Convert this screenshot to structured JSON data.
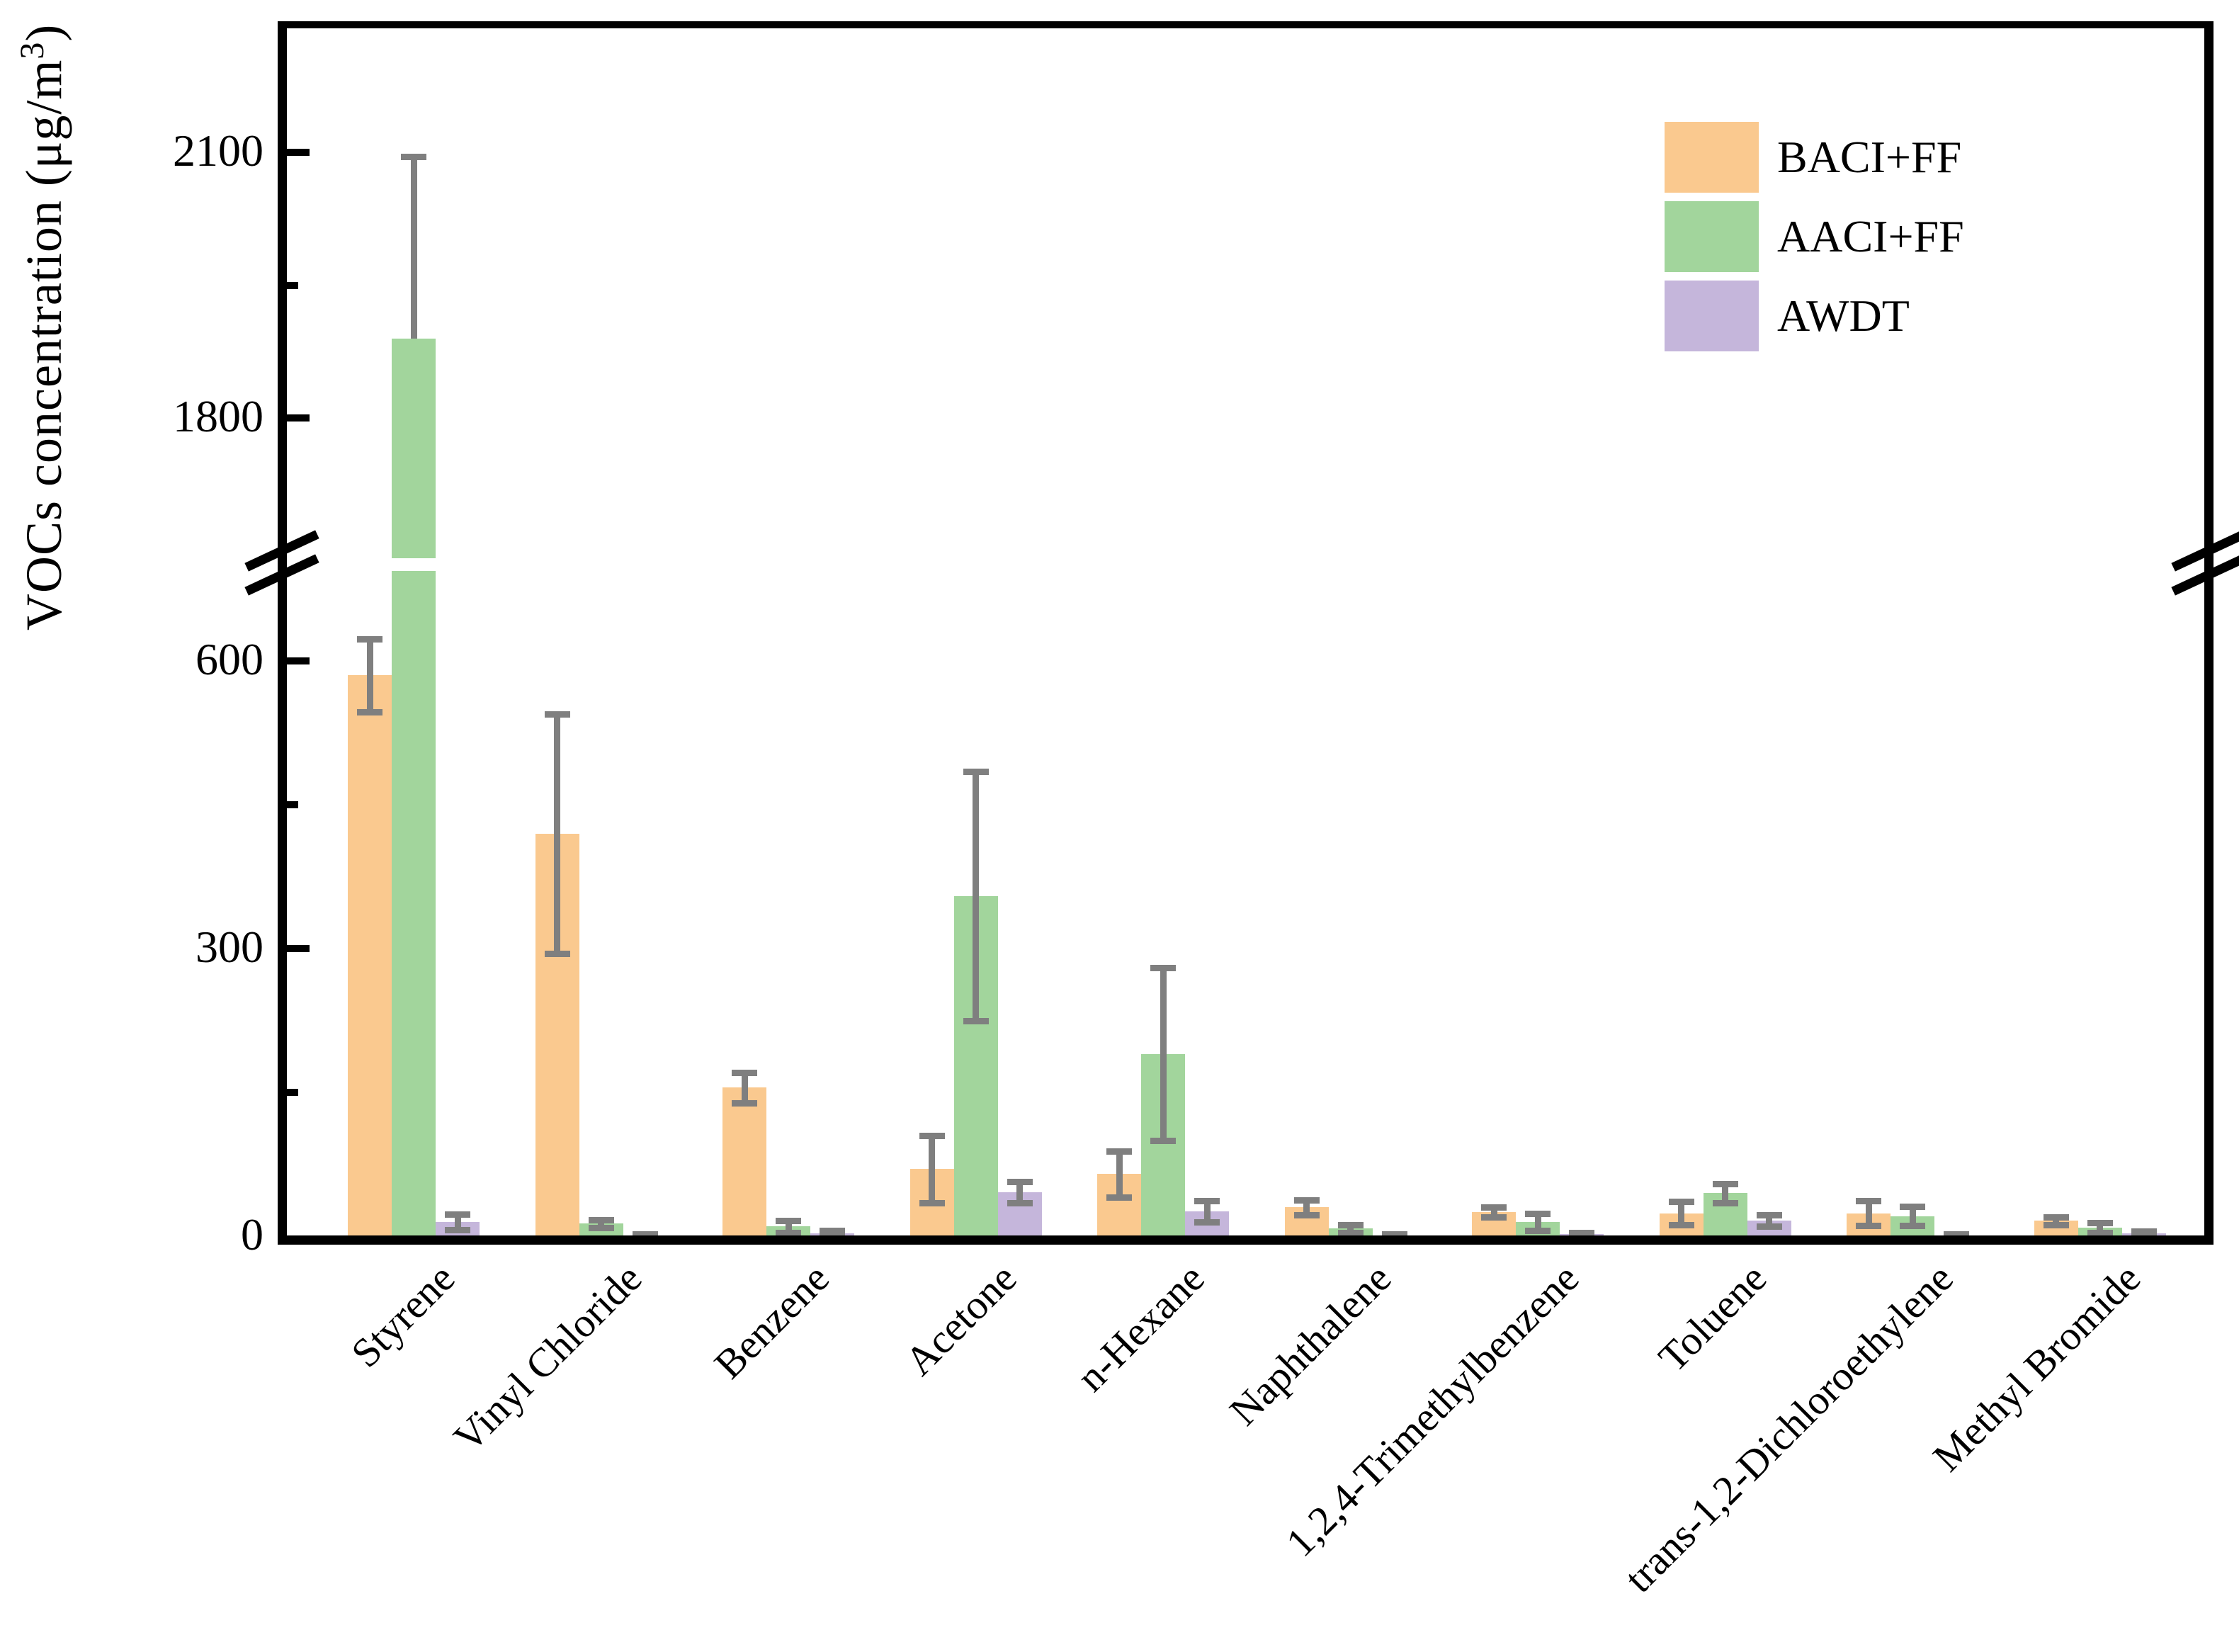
{
  "chart_data": {
    "type": "bar",
    "title": "",
    "ylabel": {
      "prefix": "VOCs concentration (μg/m",
      "sup": "3",
      "suffix": ")"
    },
    "xlabel": "",
    "categories": [
      "Styrene",
      "Vinyl Chloride",
      "Benzene",
      "Acetone",
      "n-Hexane",
      "Naphthalene",
      "1,2,4-Trimethylbenzene",
      "Toluene",
      "trans-1,2-Dichloroethylene",
      "Methyl Bromide"
    ],
    "series": [
      {
        "name": "BACI+FF",
        "color": "#FAC98F",
        "values": [
          585,
          420,
          155,
          70,
          65,
          30,
          25,
          24,
          24,
          16
        ],
        "err": [
          38,
          125,
          16,
          35,
          24,
          8,
          5,
          12,
          13,
          4
        ]
      },
      {
        "name": "AACI+FF",
        "color": "#A2D59C",
        "values": [
          1890,
          13,
          10,
          355,
          190,
          8,
          15,
          45,
          21,
          9
        ],
        "err": [
          205,
          4,
          6,
          130,
          90,
          4,
          9,
          10,
          10,
          5
        ],
        "err_down": [
          0,
          4,
          6,
          130,
          90,
          4,
          9,
          10,
          10,
          5
        ]
      },
      {
        "name": "AWDT",
        "color": "#C5B6DB",
        "values": [
          15,
          1,
          3,
          46,
          26,
          1,
          2,
          16,
          1,
          3
        ],
        "err": [
          8,
          1,
          3,
          11,
          11,
          1,
          2,
          6,
          1,
          2
        ]
      }
    ],
    "y_axis": {
      "ticks": [
        {
          "label": "0",
          "value": 0
        },
        {
          "label": "300",
          "value": 300
        },
        {
          "label": "600",
          "value": 600
        },
        {
          "label": "1800",
          "value": 1800
        },
        {
          "label": "2100",
          "value": 2100
        }
      ],
      "minor_ticks": [
        150,
        450,
        1950
      ],
      "axis_break": {
        "lower_max": 700,
        "upper_min": 1640
      },
      "range_lower": [
        0,
        694
      ],
      "range_upper": [
        1642,
        2248
      ]
    },
    "error_color": "#7F7F7F",
    "axis_color": "#000000",
    "legend_position": "top-right",
    "grid": false
  }
}
